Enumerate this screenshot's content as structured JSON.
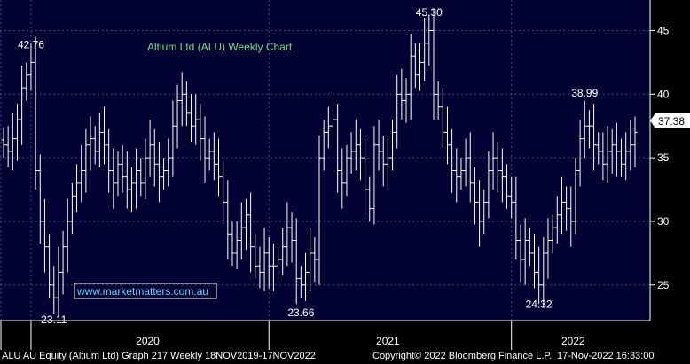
{
  "chart_data": {
    "type": "ohlc",
    "title": "Altium Ltd (ALU) Weekly Chart",
    "watermark": "www.marketmatters.com.au",
    "last_price_label": "37.38",
    "y_ticks": [
      25,
      30,
      35,
      40,
      45
    ],
    "ylim": [
      22.2,
      47.4
    ],
    "x_labels": [
      "2020",
      "2021",
      "2022"
    ],
    "grid": true,
    "colors": {
      "background": "#020233",
      "grid": "#3a4a8a",
      "bars": "#ffffff",
      "title": "#7fd67f",
      "axis_text": "#ffffff"
    },
    "annotations": [
      {
        "text": "42.76",
        "value": 42.76,
        "kind": "high"
      },
      {
        "text": "23.11",
        "value": 23.11,
        "kind": "low"
      },
      {
        "text": "45.30",
        "value": 45.3,
        "kind": "high"
      },
      {
        "text": "23.66",
        "value": 23.66,
        "kind": "low"
      },
      {
        "text": "38.99",
        "value": 38.99,
        "kind": "high"
      },
      {
        "text": "24.32",
        "value": 24.32,
        "kind": "low"
      }
    ],
    "weekly_closes": [
      36.0,
      35.5,
      36.5,
      38.0,
      40.5,
      41.5,
      42.5,
      34.0,
      30.0,
      28.0,
      25.0,
      24.0,
      26.0,
      28.0,
      30.0,
      32.0,
      33.0,
      34.0,
      36.0,
      36.5,
      35.5,
      37.0,
      36.0,
      34.0,
      33.0,
      34.5,
      33.5,
      32.5,
      33.0,
      34.0,
      33.0,
      35.0,
      36.0,
      34.5,
      33.5,
      34.0,
      35.0,
      37.5,
      39.5,
      40.0,
      38.5,
      37.5,
      38.0,
      36.5,
      35.0,
      35.5,
      34.5,
      33.5,
      31.5,
      29.0,
      27.5,
      28.5,
      29.5,
      30.5,
      28.0,
      26.5,
      26.0,
      27.5,
      26.5,
      26.5,
      27.0,
      28.0,
      29.5,
      28.5,
      25.5,
      25.0,
      26.0,
      27.5,
      27.0,
      35.0,
      37.0,
      37.5,
      38.0,
      34.0,
      33.0,
      35.0,
      35.5,
      36.0,
      35.0,
      32.5,
      31.0,
      36.0,
      35.5,
      34.5,
      35.0,
      37.0,
      40.0,
      39.5,
      40.0,
      43.0,
      41.5,
      42.5,
      44.0,
      45.0,
      40.0,
      39.0,
      37.0,
      36.0,
      34.0,
      33.5,
      34.0,
      35.0,
      33.0,
      31.5,
      30.0,
      31.5,
      34.0,
      35.0,
      34.0,
      33.5,
      32.0,
      31.5,
      28.5,
      27.0,
      28.5,
      27.5,
      26.0,
      25.0,
      27.5,
      28.5,
      29.5,
      30.5,
      31.5,
      31.0,
      30.0,
      34.0,
      36.5,
      37.5,
      37.5,
      36.0,
      35.5,
      34.5,
      35.5,
      36.0,
      35.5,
      34.5,
      35.5,
      36.0,
      37.0
    ]
  },
  "footer": {
    "left": "ALU AU Equity (Altium Ltd) Graph 217  Weekly 18NOV2019-17NOV2022",
    "center": "Copyright© 2022 Bloomberg Finance L.P.",
    "right": "17-Nov-2022 16:33:00"
  }
}
